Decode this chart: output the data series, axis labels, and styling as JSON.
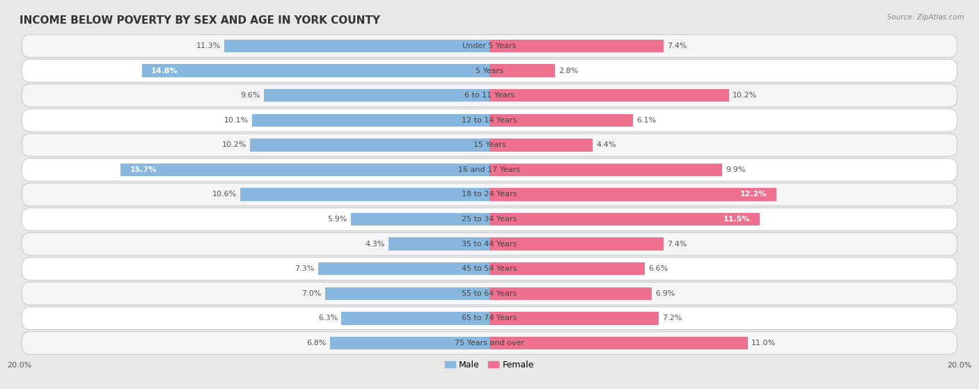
{
  "title": "INCOME BELOW POVERTY BY SEX AND AGE IN YORK COUNTY",
  "source": "Source: ZipAtlas.com",
  "categories": [
    "Under 5 Years",
    "5 Years",
    "6 to 11 Years",
    "12 to 14 Years",
    "15 Years",
    "16 and 17 Years",
    "18 to 24 Years",
    "25 to 34 Years",
    "35 to 44 Years",
    "45 to 54 Years",
    "55 to 64 Years",
    "65 to 74 Years",
    "75 Years and over"
  ],
  "male_values": [
    11.3,
    14.8,
    9.6,
    10.1,
    10.2,
    15.7,
    10.6,
    5.9,
    4.3,
    7.3,
    7.0,
    6.3,
    6.8
  ],
  "female_values": [
    7.4,
    2.8,
    10.2,
    6.1,
    4.4,
    9.9,
    12.2,
    11.5,
    7.4,
    6.6,
    6.9,
    7.2,
    11.0
  ],
  "male_color": "#88b8e0",
  "female_color": "#f07090",
  "male_color_light": "#aacde8",
  "female_color_light": "#f8b0c0",
  "bar_height": 0.52,
  "xlim": 20.0,
  "background_color": "#e8e8e8",
  "row_bg_color": "#f5f5f8",
  "row_alt_bg_color": "#ffffff",
  "title_fontsize": 11,
  "label_fontsize": 8,
  "category_fontsize": 8,
  "axis_fontsize": 8,
  "legend_fontsize": 9,
  "inside_label_threshold_male": 13.0,
  "inside_label_threshold_female": 11.5
}
